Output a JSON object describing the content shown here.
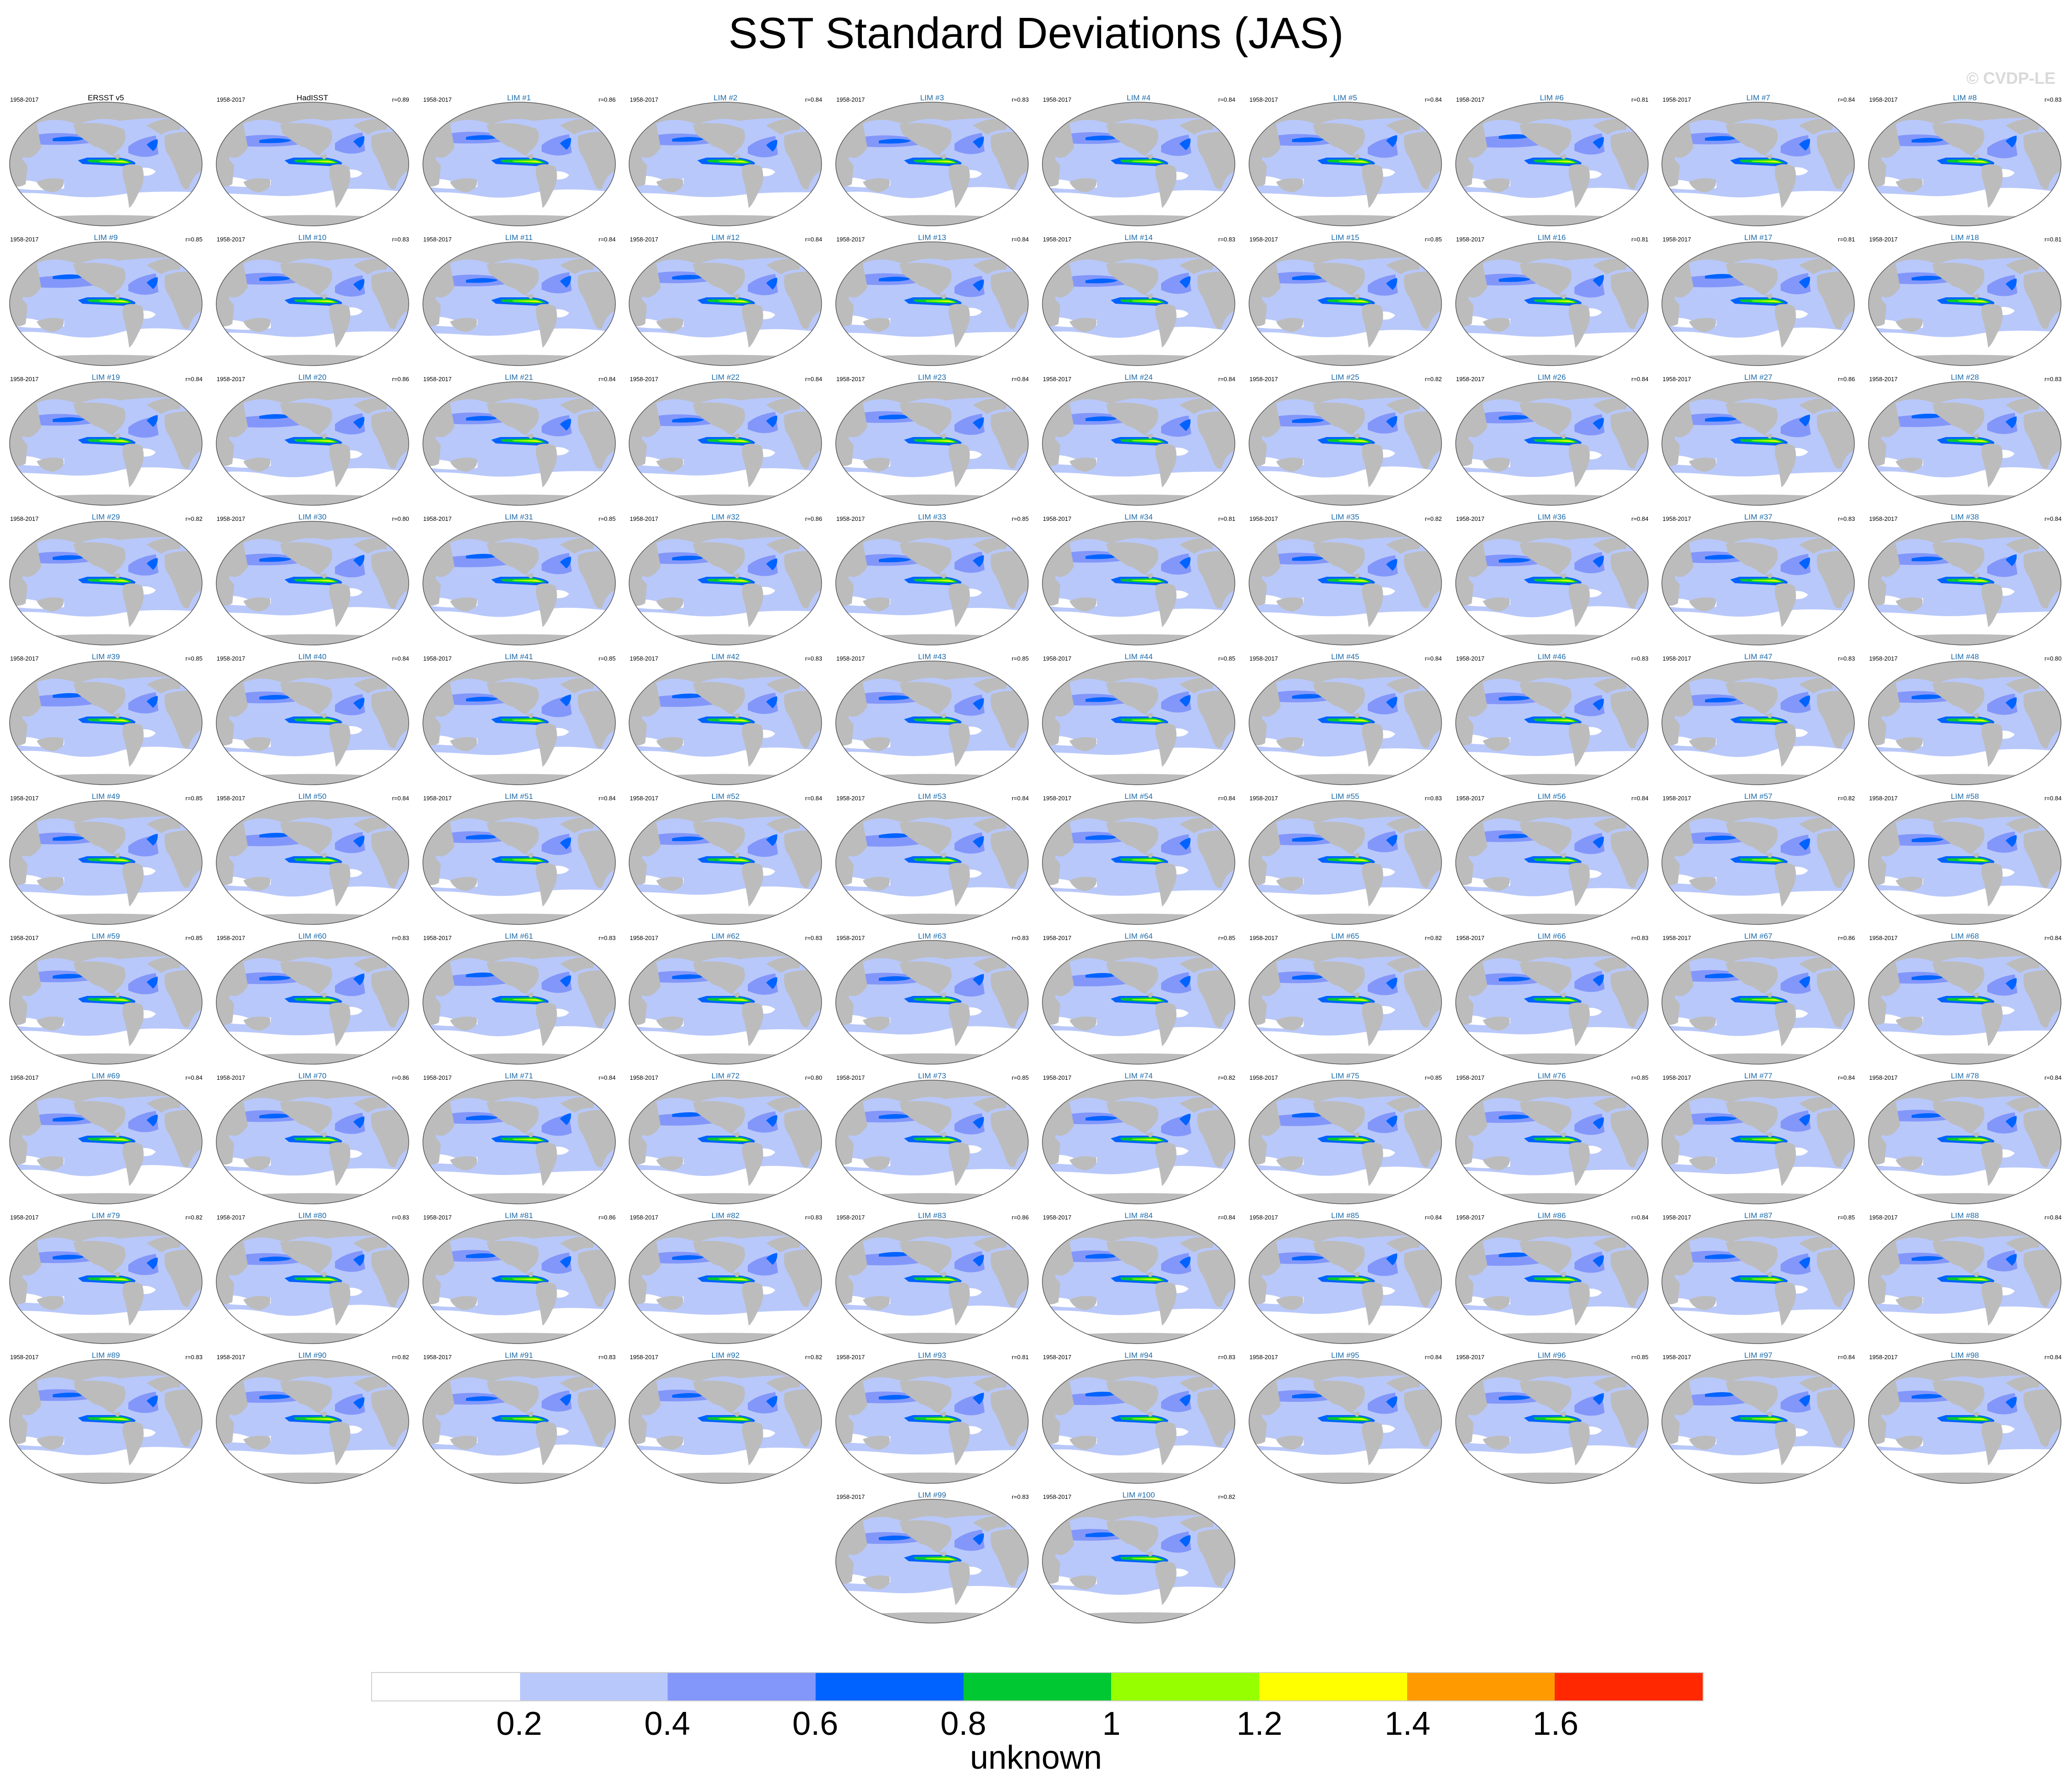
{
  "title": "SST Standard Deviations (JAS)",
  "watermark": "© CVDP-LE",
  "colorbar": {
    "unit_label": "unknown",
    "ticks": [
      "0.2",
      "0.4",
      "0.6",
      "0.8",
      "1",
      "1.2",
      "1.4",
      "1.6"
    ],
    "colors": [
      "#ffffff",
      "#b9c8fa",
      "#8397fa",
      "#0063ff",
      "#00c832",
      "#96ff00",
      "#ffff00",
      "#ff9b00",
      "#ff2800"
    ]
  },
  "chart_data": {
    "type": "heatmap",
    "title": "SST Standard Deviations (JAS)",
    "levels": [
      0.2,
      0.4,
      0.6,
      0.8,
      1.0,
      1.2,
      1.4,
      1.6
    ],
    "land_color": "#bcbcbc",
    "panels": [
      {
        "name": "ERSST v5",
        "period": "1958-2017",
        "r": "",
        "obs": true
      },
      {
        "name": "HadISST",
        "period": "1958-2017",
        "r": "r=0.89",
        "obs": true
      },
      {
        "name": "LIM #1",
        "period": "1958-2017",
        "r": "r=0.86"
      },
      {
        "name": "LIM #2",
        "period": "1958-2017",
        "r": "r=0.84"
      },
      {
        "name": "LIM #3",
        "period": "1958-2017",
        "r": "r=0.83"
      },
      {
        "name": "LIM #4",
        "period": "1958-2017",
        "r": "r=0.84"
      },
      {
        "name": "LIM #5",
        "period": "1958-2017",
        "r": "r=0.84"
      },
      {
        "name": "LIM #6",
        "period": "1958-2017",
        "r": "r=0.81"
      },
      {
        "name": "LIM #7",
        "period": "1958-2017",
        "r": "r=0.84"
      },
      {
        "name": "LIM #8",
        "period": "1958-2017",
        "r": "r=0.83"
      },
      {
        "name": "LIM #9",
        "period": "1958-2017",
        "r": "r=0.85"
      },
      {
        "name": "LIM #10",
        "period": "1958-2017",
        "r": "r=0.83"
      },
      {
        "name": "LIM #11",
        "period": "1958-2017",
        "r": "r=0.84"
      },
      {
        "name": "LIM #12",
        "period": "1958-2017",
        "r": "r=0.84"
      },
      {
        "name": "LIM #13",
        "period": "1958-2017",
        "r": "r=0.84"
      },
      {
        "name": "LIM #14",
        "period": "1958-2017",
        "r": "r=0.83"
      },
      {
        "name": "LIM #15",
        "period": "1958-2017",
        "r": "r=0.85"
      },
      {
        "name": "LIM #16",
        "period": "1958-2017",
        "r": "r=0.81"
      },
      {
        "name": "LIM #17",
        "period": "1958-2017",
        "r": "r=0.81"
      },
      {
        "name": "LIM #18",
        "period": "1958-2017",
        "r": "r=0.81"
      },
      {
        "name": "LIM #19",
        "period": "1958-2017",
        "r": "r=0.84"
      },
      {
        "name": "LIM #20",
        "period": "1958-2017",
        "r": "r=0.86"
      },
      {
        "name": "LIM #21",
        "period": "1958-2017",
        "r": "r=0.84"
      },
      {
        "name": "LIM #22",
        "period": "1958-2017",
        "r": "r=0.84"
      },
      {
        "name": "LIM #23",
        "period": "1958-2017",
        "r": "r=0.84"
      },
      {
        "name": "LIM #24",
        "period": "1958-2017",
        "r": "r=0.84"
      },
      {
        "name": "LIM #25",
        "period": "1958-2017",
        "r": "r=0.82"
      },
      {
        "name": "LIM #26",
        "period": "1958-2017",
        "r": "r=0.84"
      },
      {
        "name": "LIM #27",
        "period": "1958-2017",
        "r": "r=0.86"
      },
      {
        "name": "LIM #28",
        "period": "1958-2017",
        "r": "r=0.83"
      },
      {
        "name": "LIM #29",
        "period": "1958-2017",
        "r": "r=0.82"
      },
      {
        "name": "LIM #30",
        "period": "1958-2017",
        "r": "r=0.80"
      },
      {
        "name": "LIM #31",
        "period": "1958-2017",
        "r": "r=0.85"
      },
      {
        "name": "LIM #32",
        "period": "1958-2017",
        "r": "r=0.86"
      },
      {
        "name": "LIM #33",
        "period": "1958-2017",
        "r": "r=0.85"
      },
      {
        "name": "LIM #34",
        "period": "1958-2017",
        "r": "r=0.81"
      },
      {
        "name": "LIM #35",
        "period": "1958-2017",
        "r": "r=0.82"
      },
      {
        "name": "LIM #36",
        "period": "1958-2017",
        "r": "r=0.84"
      },
      {
        "name": "LIM #37",
        "period": "1958-2017",
        "r": "r=0.83"
      },
      {
        "name": "LIM #38",
        "period": "1958-2017",
        "r": "r=0.84"
      },
      {
        "name": "LIM #39",
        "period": "1958-2017",
        "r": "r=0.85"
      },
      {
        "name": "LIM #40",
        "period": "1958-2017",
        "r": "r=0.84"
      },
      {
        "name": "LIM #41",
        "period": "1958-2017",
        "r": "r=0.85"
      },
      {
        "name": "LIM #42",
        "period": "1958-2017",
        "r": "r=0.83"
      },
      {
        "name": "LIM #43",
        "period": "1958-2017",
        "r": "r=0.85"
      },
      {
        "name": "LIM #44",
        "period": "1958-2017",
        "r": "r=0.85"
      },
      {
        "name": "LIM #45",
        "period": "1958-2017",
        "r": "r=0.84"
      },
      {
        "name": "LIM #46",
        "period": "1958-2017",
        "r": "r=0.83"
      },
      {
        "name": "LIM #47",
        "period": "1958-2017",
        "r": "r=0.83"
      },
      {
        "name": "LIM #48",
        "period": "1958-2017",
        "r": "r=0.80"
      },
      {
        "name": "LIM #49",
        "period": "1958-2017",
        "r": "r=0.85"
      },
      {
        "name": "LIM #50",
        "period": "1958-2017",
        "r": "r=0.84"
      },
      {
        "name": "LIM #51",
        "period": "1958-2017",
        "r": "r=0.84"
      },
      {
        "name": "LIM #52",
        "period": "1958-2017",
        "r": "r=0.84"
      },
      {
        "name": "LIM #53",
        "period": "1958-2017",
        "r": "r=0.84"
      },
      {
        "name": "LIM #54",
        "period": "1958-2017",
        "r": "r=0.84"
      },
      {
        "name": "LIM #55",
        "period": "1958-2017",
        "r": "r=0.83"
      },
      {
        "name": "LIM #56",
        "period": "1958-2017",
        "r": "r=0.84"
      },
      {
        "name": "LIM #57",
        "period": "1958-2017",
        "r": "r=0.82"
      },
      {
        "name": "LIM #58",
        "period": "1958-2017",
        "r": "r=0.84"
      },
      {
        "name": "LIM #59",
        "period": "1958-2017",
        "r": "r=0.85"
      },
      {
        "name": "LIM #60",
        "period": "1958-2017",
        "r": "r=0.83"
      },
      {
        "name": "LIM #61",
        "period": "1958-2017",
        "r": "r=0.83"
      },
      {
        "name": "LIM #62",
        "period": "1958-2017",
        "r": "r=0.83"
      },
      {
        "name": "LIM #63",
        "period": "1958-2017",
        "r": "r=0.83"
      },
      {
        "name": "LIM #64",
        "period": "1958-2017",
        "r": "r=0.85"
      },
      {
        "name": "LIM #65",
        "period": "1958-2017",
        "r": "r=0.82"
      },
      {
        "name": "LIM #66",
        "period": "1958-2017",
        "r": "r=0.83"
      },
      {
        "name": "LIM #67",
        "period": "1958-2017",
        "r": "r=0.86"
      },
      {
        "name": "LIM #68",
        "period": "1958-2017",
        "r": "r=0.84"
      },
      {
        "name": "LIM #69",
        "period": "1958-2017",
        "r": "r=0.84"
      },
      {
        "name": "LIM #70",
        "period": "1958-2017",
        "r": "r=0.86"
      },
      {
        "name": "LIM #71",
        "period": "1958-2017",
        "r": "r=0.84"
      },
      {
        "name": "LIM #72",
        "period": "1958-2017",
        "r": "r=0.80"
      },
      {
        "name": "LIM #73",
        "period": "1958-2017",
        "r": "r=0.85"
      },
      {
        "name": "LIM #74",
        "period": "1958-2017",
        "r": "r=0.82"
      },
      {
        "name": "LIM #75",
        "period": "1958-2017",
        "r": "r=0.85"
      },
      {
        "name": "LIM #76",
        "period": "1958-2017",
        "r": "r=0.85"
      },
      {
        "name": "LIM #77",
        "period": "1958-2017",
        "r": "r=0.84"
      },
      {
        "name": "LIM #78",
        "period": "1958-2017",
        "r": "r=0.84"
      },
      {
        "name": "LIM #79",
        "period": "1958-2017",
        "r": "r=0.82"
      },
      {
        "name": "LIM #80",
        "period": "1958-2017",
        "r": "r=0.83"
      },
      {
        "name": "LIM #81",
        "period": "1958-2017",
        "r": "r=0.86"
      },
      {
        "name": "LIM #82",
        "period": "1958-2017",
        "r": "r=0.83"
      },
      {
        "name": "LIM #83",
        "period": "1958-2017",
        "r": "r=0.86"
      },
      {
        "name": "LIM #84",
        "period": "1958-2017",
        "r": "r=0.84"
      },
      {
        "name": "LIM #85",
        "period": "1958-2017",
        "r": "r=0.84"
      },
      {
        "name": "LIM #86",
        "period": "1958-2017",
        "r": "r=0.84"
      },
      {
        "name": "LIM #87",
        "period": "1958-2017",
        "r": "r=0.85"
      },
      {
        "name": "LIM #88",
        "period": "1958-2017",
        "r": "r=0.84"
      },
      {
        "name": "LIM #89",
        "period": "1958-2017",
        "r": "r=0.83"
      },
      {
        "name": "LIM #90",
        "period": "1958-2017",
        "r": "r=0.82"
      },
      {
        "name": "LIM #91",
        "period": "1958-2017",
        "r": "r=0.83"
      },
      {
        "name": "LIM #92",
        "period": "1958-2017",
        "r": "r=0.82"
      },
      {
        "name": "LIM #93",
        "period": "1958-2017",
        "r": "r=0.81"
      },
      {
        "name": "LIM #94",
        "period": "1958-2017",
        "r": "r=0.83"
      },
      {
        "name": "LIM #95",
        "period": "1958-2017",
        "r": "r=0.84"
      },
      {
        "name": "LIM #96",
        "period": "1958-2017",
        "r": "r=0.85"
      },
      {
        "name": "LIM #97",
        "period": "1958-2017",
        "r": "r=0.84"
      },
      {
        "name": "LIM #98",
        "period": "1958-2017",
        "r": "r=0.84"
      },
      {
        "name": "LIM #99",
        "period": "1958-2017",
        "r": "r=0.83"
      },
      {
        "name": "LIM #100",
        "period": "1958-2017",
        "r": "r=0.82"
      }
    ]
  }
}
